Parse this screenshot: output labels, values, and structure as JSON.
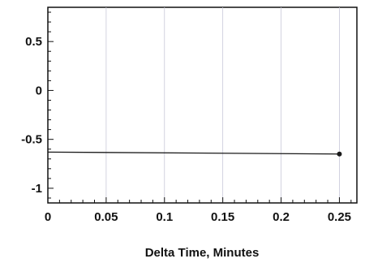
{
  "chart_data": {
    "type": "line",
    "title": "",
    "xlabel": "Delta Time, Minutes",
    "ylabel": "",
    "xlim": [
      0,
      0.265
    ],
    "ylim": [
      -1.15,
      0.85
    ],
    "grid": "vertical",
    "x_ticks": [
      {
        "value": 0,
        "label": "0"
      },
      {
        "value": 0.05,
        "label": "0.05"
      },
      {
        "value": 0.1,
        "label": "0.1"
      },
      {
        "value": 0.15,
        "label": "0.15"
      },
      {
        "value": 0.2,
        "label": "0.2"
      },
      {
        "value": 0.25,
        "label": "0.25"
      }
    ],
    "y_ticks": [
      {
        "value": 0.5,
        "label": "0.5"
      },
      {
        "value": 0,
        "label": "0"
      },
      {
        "value": -0.5,
        "label": "-0.5"
      },
      {
        "value": -1,
        "label": "-1"
      }
    ],
    "series": [
      {
        "x": [
          0,
          0.25
        ],
        "y": [
          -0.63,
          -0.65
        ],
        "markers": [
          false,
          true
        ]
      }
    ],
    "colors": {
      "line": "#1a1a1a",
      "grid": "#c8c8d8",
      "axis": "#111111"
    }
  }
}
